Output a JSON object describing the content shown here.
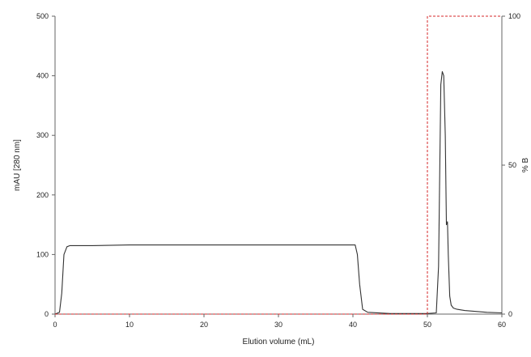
{
  "chart_data": {
    "type": "line",
    "xlabel": "Elution volume (mL)",
    "ylabel": "mAU [280 nm]",
    "y2label": "% B",
    "xlim": [
      0,
      60
    ],
    "ylim": [
      0,
      500
    ],
    "y2lim": [
      0,
      100
    ],
    "x_ticks": [
      "0",
      "10",
      "20",
      "30",
      "40",
      "50",
      "60"
    ],
    "y_ticks": [
      "0",
      "100",
      "200",
      "300",
      "400",
      "500"
    ],
    "y2_ticks": [
      "0",
      "50",
      "100"
    ],
    "grid": false,
    "legend": "none",
    "series": [
      {
        "axis": "left",
        "style": "solid",
        "color": "#333333",
        "x": [
          0,
          0.6,
          0.9,
          1.2,
          1.6,
          2,
          5,
          10,
          15,
          20,
          25,
          30,
          35,
          39,
          40.3,
          40.6,
          40.9,
          41.3,
          42,
          45,
          50,
          51.2,
          51.5,
          51.8,
          52.0,
          52.2,
          52.4,
          52.55,
          52.7,
          52.8,
          53.0,
          53.2,
          53.5,
          54,
          55,
          58,
          60
        ],
        "y": [
          0,
          3,
          35,
          100,
          113,
          115,
          115,
          116,
          116,
          116,
          116,
          116,
          116,
          116,
          116,
          100,
          50,
          8,
          3,
          1,
          1,
          2,
          80,
          385,
          407,
          400,
          300,
          150,
          155,
          100,
          30,
          15,
          10,
          8,
          6,
          3,
          2
        ]
      },
      {
        "axis": "right",
        "style": "dashed",
        "color": "#d62728",
        "x": [
          0,
          50,
          50,
          60
        ],
        "y": [
          0,
          0,
          100,
          100
        ]
      }
    ]
  }
}
